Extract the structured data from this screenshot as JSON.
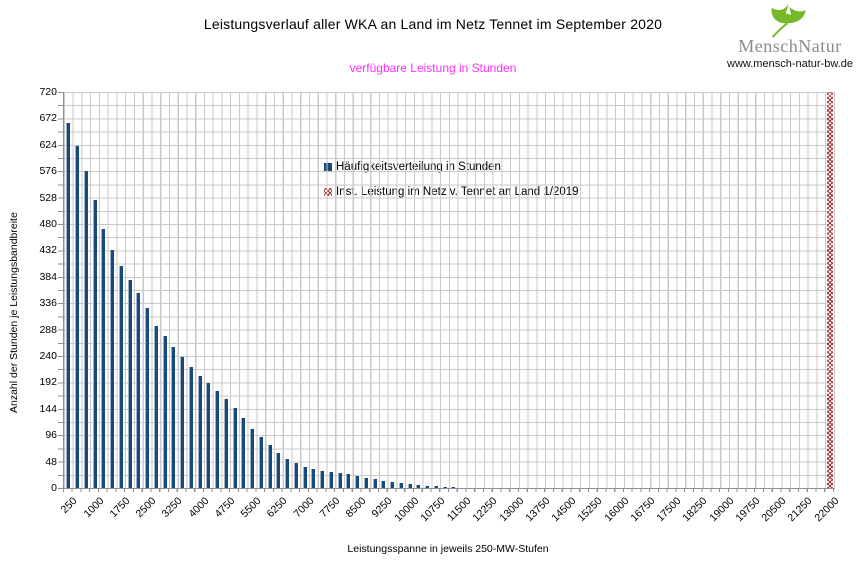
{
  "header": {
    "title": "Leistungsverlauf aller WKA an Land im Netz Tennet im September 2020",
    "subtitle": "verfügbare Leistung in Stunden"
  },
  "logo": {
    "brand": "MenschNatur",
    "url": "www.mensch-natur-bw.de",
    "leaf_icon": "ginkgo-leaf",
    "leaf_color": "#76b82a",
    "brand_color": "#8c8c8c"
  },
  "legend": {
    "items": [
      {
        "label": "Häufigkeitsverteilung in Stunden",
        "swatch": "solid-blue-square"
      },
      {
        "label": "Inst. Leistung im Netz v. Tennet an Land 1/2019",
        "swatch": "red-crosshatch-square"
      }
    ]
  },
  "axes": {
    "y_title": "Anzahl der Stunden je Leistungsbandbreite",
    "x_title": "Leistungsspanne in jeweils 250-MW-Stufen",
    "y_ticks": [
      0,
      48,
      96,
      144,
      192,
      240,
      288,
      336,
      384,
      432,
      480,
      528,
      576,
      624,
      672,
      720
    ],
    "y_max": 720,
    "x_label_every": 3
  },
  "colors": {
    "bar_blue": "#1a4a7c",
    "capacity_red": "#a43a3a",
    "grid_gray": "#c9c9c9",
    "axis_gray": "#8f8f8f",
    "subtitle_magenta": "#ff2dff"
  },
  "chart_data": {
    "type": "bar",
    "title": "Leistungsverlauf aller WKA an Land im Netz Tennet im September 2020",
    "subtitle": "verfügbare Leistung in Stunden",
    "xlabel": "Leistungsspanne in jeweils 250-MW-Stufen",
    "ylabel": "Anzahl der Stunden je Leistungsbandbreite",
    "ylim": [
      0,
      720
    ],
    "y_tick_step": 48,
    "grid": true,
    "legend_position": "inside-top-center",
    "categories": [
      250,
      500,
      750,
      1000,
      1250,
      1500,
      1750,
      2000,
      2250,
      2500,
      2750,
      3000,
      3250,
      3500,
      3750,
      4000,
      4250,
      4500,
      4750,
      5000,
      5250,
      5500,
      5750,
      6000,
      6250,
      6500,
      6750,
      7000,
      7250,
      7500,
      7750,
      8000,
      8250,
      8500,
      8750,
      9000,
      9250,
      9500,
      9750,
      10000,
      10250,
      10500,
      10750,
      11000,
      11250,
      11500,
      11750,
      12000,
      12250,
      12500,
      12750,
      13000,
      13250,
      13500,
      13750,
      14000,
      14250,
      14500,
      14750,
      15000,
      15250,
      15500,
      15750,
      16000,
      16250,
      16500,
      16750,
      17000,
      17250,
      17500,
      17750,
      18000,
      18250,
      18500,
      18750,
      19000,
      19250,
      19500,
      19750,
      20000,
      20250,
      20500,
      20750,
      21000,
      21250,
      21500,
      21750,
      22000
    ],
    "series": [
      {
        "name": "Häufigkeitsverteilung in Stunden",
        "type": "bar",
        "color": "#1a4a7c",
        "values": [
          664,
          621,
          577,
          523,
          471,
          433,
          404,
          378,
          355,
          328,
          294,
          277,
          257,
          238,
          220,
          203,
          191,
          177,
          162,
          145,
          128,
          107,
          93,
          78,
          64,
          52,
          45,
          39,
          34,
          31,
          29,
          27,
          25,
          22,
          19,
          16,
          13,
          11,
          9,
          7,
          5,
          4,
          3,
          2,
          2,
          0,
          0,
          0,
          0,
          0,
          0,
          0,
          0,
          0,
          0,
          0,
          0,
          0,
          0,
          0,
          0,
          0,
          0,
          0,
          0,
          0,
          0,
          0,
          0,
          0,
          0,
          0,
          0,
          0,
          0,
          0,
          0,
          0,
          0,
          0,
          0,
          0,
          0,
          0,
          0,
          0,
          0,
          0
        ]
      },
      {
        "name": "Inst. Leistung im Netz v. Tennet an Land 1/2019",
        "type": "bar",
        "pattern": "red-crosshatch",
        "color": "#a43a3a",
        "values": [
          0,
          0,
          0,
          0,
          0,
          0,
          0,
          0,
          0,
          0,
          0,
          0,
          0,
          0,
          0,
          0,
          0,
          0,
          0,
          0,
          0,
          0,
          0,
          0,
          0,
          0,
          0,
          0,
          0,
          0,
          0,
          0,
          0,
          0,
          0,
          0,
          0,
          0,
          0,
          0,
          0,
          0,
          0,
          0,
          0,
          0,
          0,
          0,
          0,
          0,
          0,
          0,
          0,
          0,
          0,
          0,
          0,
          0,
          0,
          0,
          0,
          0,
          0,
          0,
          0,
          0,
          0,
          0,
          0,
          0,
          0,
          0,
          0,
          0,
          0,
          0,
          0,
          0,
          0,
          0,
          0,
          0,
          0,
          0,
          0,
          0,
          0,
          720
        ]
      }
    ]
  }
}
